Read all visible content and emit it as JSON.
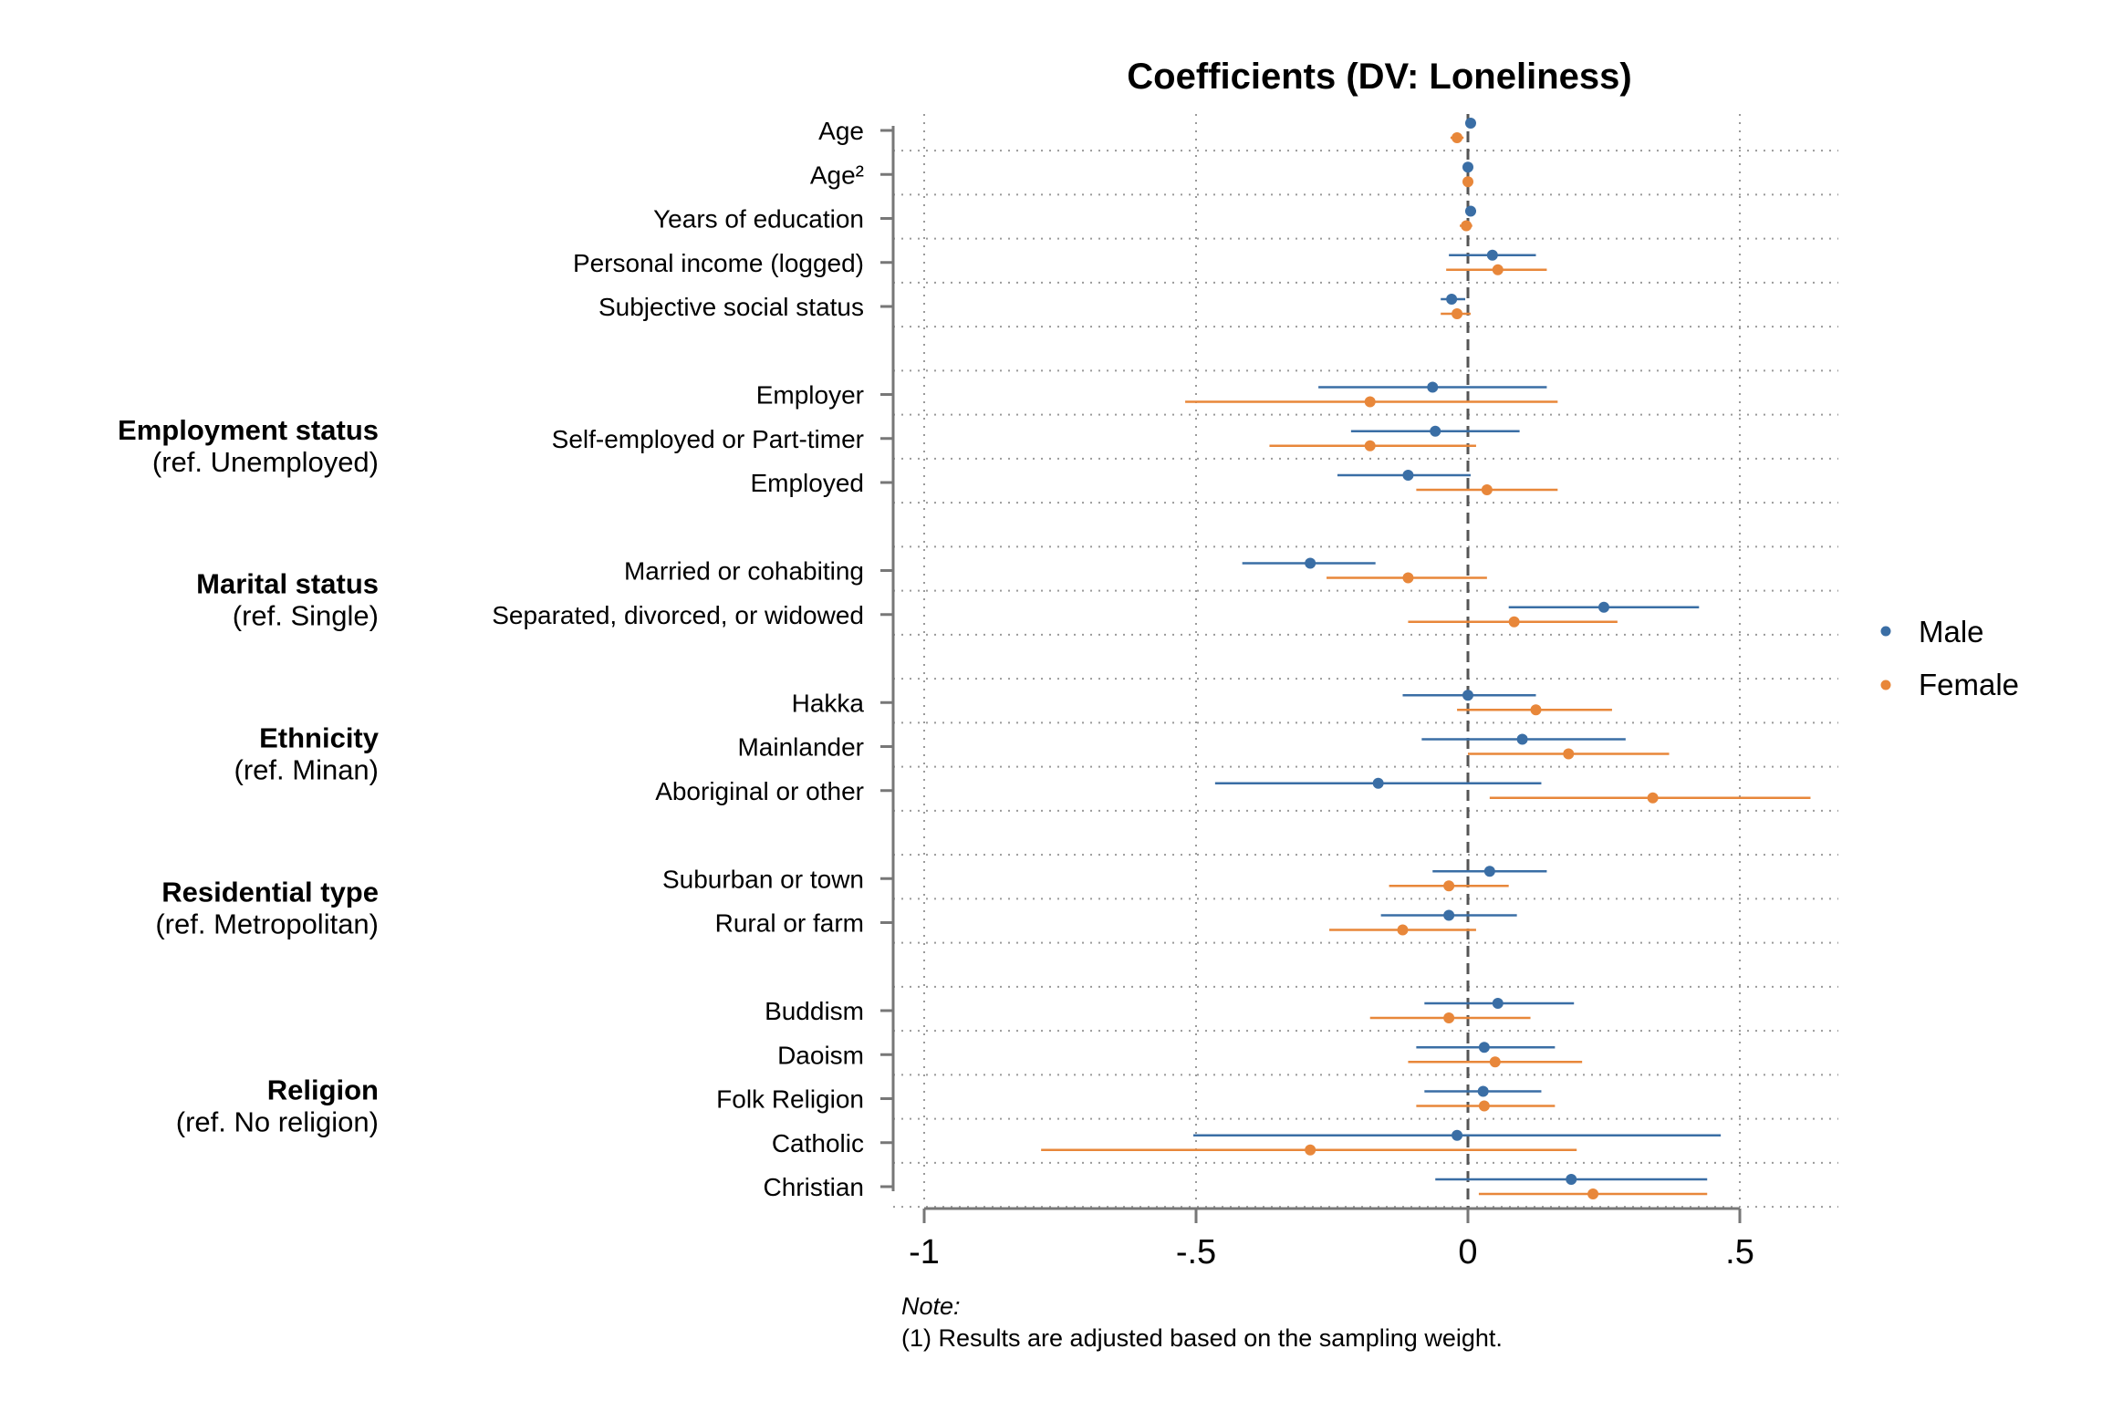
{
  "chart_data": {
    "type": "scatter",
    "subtype": "coefficient-plot-with-confidence-intervals",
    "title": "Coefficients (DV: Loneliness)",
    "xlim": [
      -1,
      0.68
    ],
    "xticks": [
      -1,
      -0.5,
      0,
      0.5
    ],
    "xtick_labels": [
      "-1",
      "-.5",
      "0",
      ".5"
    ],
    "reference_line_x": 0,
    "grid": true,
    "legend_position": "right",
    "colors": {
      "Male": "#3a6ea5",
      "Female": "#e8873a",
      "axis": "#777777",
      "grid": "#9a9a9a"
    },
    "series": [
      {
        "name": "Male",
        "color": "#3a6ea5"
      },
      {
        "name": "Female",
        "color": "#e8873a"
      }
    ],
    "rows": [
      {
        "label": "Age",
        "slot": 0,
        "male": {
          "est": 0.005,
          "lo": -0.003,
          "hi": 0.012
        },
        "female": {
          "est": -0.02,
          "lo": -0.032,
          "hi": -0.008
        }
      },
      {
        "label": "Age²",
        "slot": 1,
        "male": {
          "est": 0.0,
          "lo": 0.0,
          "hi": 0.0
        },
        "female": {
          "est": 0.0,
          "lo": 0.0,
          "hi": 0.0
        }
      },
      {
        "label": "Years of education",
        "slot": 2,
        "male": {
          "est": 0.005,
          "lo": -0.005,
          "hi": 0.015
        },
        "female": {
          "est": -0.003,
          "lo": -0.015,
          "hi": 0.008
        }
      },
      {
        "label": "Personal income (logged)",
        "slot": 3,
        "male": {
          "est": 0.045,
          "lo": -0.035,
          "hi": 0.125
        },
        "female": {
          "est": 0.055,
          "lo": -0.04,
          "hi": 0.145
        }
      },
      {
        "label": "Subjective social status",
        "slot": 4,
        "male": {
          "est": -0.03,
          "lo": -0.05,
          "hi": -0.005
        },
        "female": {
          "est": -0.02,
          "lo": -0.05,
          "hi": 0.005
        }
      },
      {
        "label": "Employer",
        "slot": 6,
        "male": {
          "est": -0.065,
          "lo": -0.275,
          "hi": 0.145
        },
        "female": {
          "est": -0.18,
          "lo": -0.52,
          "hi": 0.165
        }
      },
      {
        "label": "Self-employed or Part-timer",
        "slot": 7,
        "male": {
          "est": -0.06,
          "lo": -0.215,
          "hi": 0.095
        },
        "female": {
          "est": -0.18,
          "lo": -0.365,
          "hi": 0.015
        }
      },
      {
        "label": "Employed",
        "slot": 8,
        "male": {
          "est": -0.11,
          "lo": -0.24,
          "hi": 0.005
        },
        "female": {
          "est": 0.035,
          "lo": -0.095,
          "hi": 0.165
        }
      },
      {
        "label": "Married or cohabiting",
        "slot": 10,
        "male": {
          "est": -0.29,
          "lo": -0.415,
          "hi": -0.17
        },
        "female": {
          "est": -0.11,
          "lo": -0.26,
          "hi": 0.035
        }
      },
      {
        "label": "Separated, divorced, or widowed",
        "slot": 11,
        "male": {
          "est": 0.25,
          "lo": 0.075,
          "hi": 0.425
        },
        "female": {
          "est": 0.085,
          "lo": -0.11,
          "hi": 0.275
        }
      },
      {
        "label": "Hakka",
        "slot": 13,
        "male": {
          "est": 0.0,
          "lo": -0.12,
          "hi": 0.125
        },
        "female": {
          "est": 0.125,
          "lo": -0.02,
          "hi": 0.265
        }
      },
      {
        "label": "Mainlander",
        "slot": 14,
        "male": {
          "est": 0.1,
          "lo": -0.085,
          "hi": 0.29
        },
        "female": {
          "est": 0.185,
          "lo": 0.0,
          "hi": 0.37
        }
      },
      {
        "label": "Aboriginal or other",
        "slot": 15,
        "male": {
          "est": -0.165,
          "lo": -0.465,
          "hi": 0.135
        },
        "female": {
          "est": 0.34,
          "lo": 0.04,
          "hi": 0.63
        }
      },
      {
        "label": "Suburban or town",
        "slot": 17,
        "male": {
          "est": 0.04,
          "lo": -0.065,
          "hi": 0.145
        },
        "female": {
          "est": -0.035,
          "lo": -0.145,
          "hi": 0.075
        }
      },
      {
        "label": "Rural or farm",
        "slot": 18,
        "male": {
          "est": -0.035,
          "lo": -0.16,
          "hi": 0.09
        },
        "female": {
          "est": -0.12,
          "lo": -0.255,
          "hi": 0.015
        }
      },
      {
        "label": "Buddism",
        "slot": 20,
        "male": {
          "est": 0.055,
          "lo": -0.08,
          "hi": 0.195
        },
        "female": {
          "est": -0.035,
          "lo": -0.18,
          "hi": 0.115
        }
      },
      {
        "label": "Daoism",
        "slot": 21,
        "male": {
          "est": 0.03,
          "lo": -0.095,
          "hi": 0.16
        },
        "female": {
          "est": 0.05,
          "lo": -0.11,
          "hi": 0.21
        }
      },
      {
        "label": "Folk Religion",
        "slot": 22,
        "male": {
          "est": 0.028,
          "lo": -0.08,
          "hi": 0.135
        },
        "female": {
          "est": 0.03,
          "lo": -0.095,
          "hi": 0.16
        }
      },
      {
        "label": "Catholic",
        "slot": 23,
        "male": {
          "est": -0.02,
          "lo": -0.505,
          "hi": 0.465
        },
        "female": {
          "est": -0.29,
          "lo": -0.785,
          "hi": 0.2
        }
      },
      {
        "label": "Christian",
        "slot": 24,
        "male": {
          "est": 0.19,
          "lo": -0.06,
          "hi": 0.44
        },
        "female": {
          "est": 0.23,
          "lo": 0.02,
          "hi": 0.44
        }
      }
    ],
    "groups": [
      {
        "title": "Employment status",
        "ref": "(ref. Unemployed)",
        "first_slot": 6,
        "last_slot": 8
      },
      {
        "title": "Marital status",
        "ref": "(ref. Single)",
        "first_slot": 10,
        "last_slot": 11
      },
      {
        "title": "Ethnicity",
        "ref": "(ref. Minan)",
        "first_slot": 13,
        "last_slot": 15
      },
      {
        "title": "Residential type",
        "ref": "(ref. Metropolitan)",
        "first_slot": 17,
        "last_slot": 18
      },
      {
        "title": "Religion",
        "ref": "(ref. No religion)",
        "first_slot": 20,
        "last_slot": 24
      }
    ]
  },
  "legend": {
    "entries": [
      "Male",
      "Female"
    ]
  },
  "note": {
    "heading": "Note:",
    "line1": "(1) Results are adjusted based on the sampling weight."
  }
}
